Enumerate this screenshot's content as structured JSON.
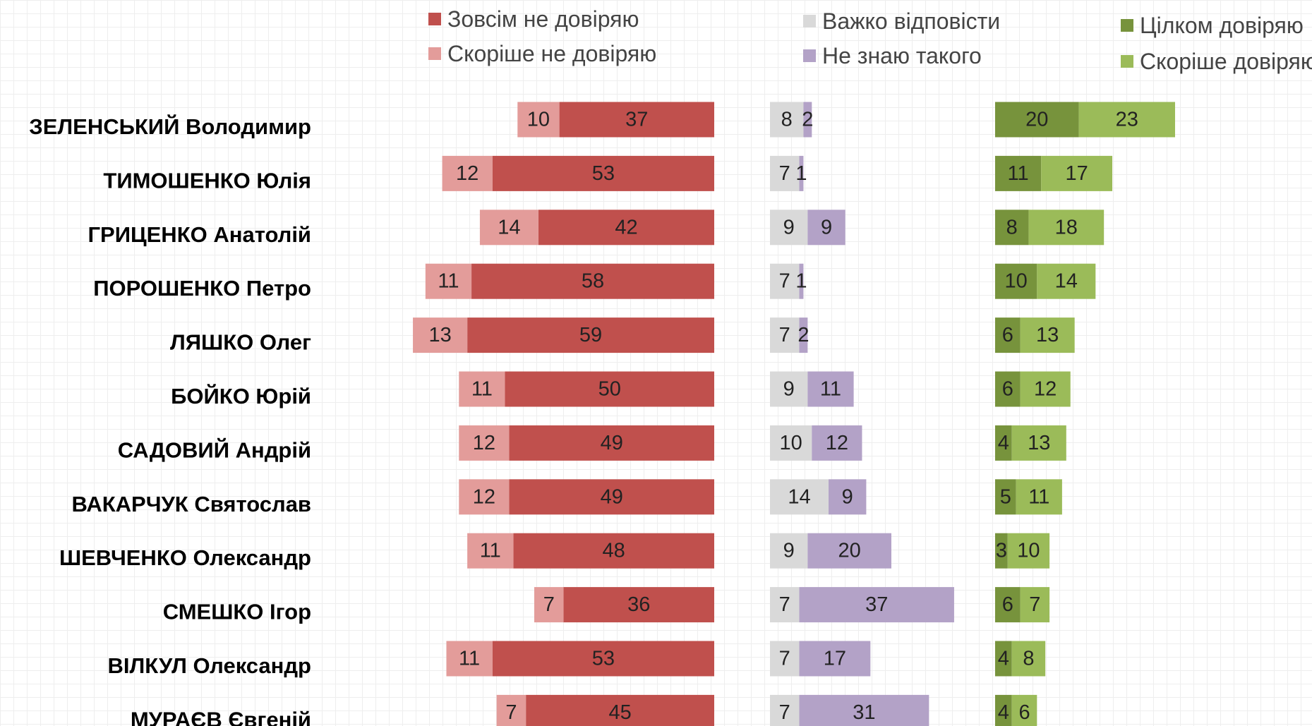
{
  "chart_data": {
    "type": "bar",
    "categories": [
      "ЗЕЛЕНСЬКИЙ Володимир",
      "ТИМОШЕНКО Юлія",
      "ГРИЦЕНКО Анатолій",
      "ПОРОШЕНКО Петро",
      "ЛЯШКО Олег",
      "БОЙКО Юрій",
      "САДОВИЙ Андрій",
      "ВАКАРЧУК Святослав",
      "ШЕВЧЕНКО Олександр",
      "СМЕШКО Ігор",
      "ВІЛКУЛ Олександр",
      "МУРАЄВ Євгеній"
    ],
    "series": [
      {
        "name": "Зовсім не довіряю",
        "color": "#c0504d",
        "values": [
          37,
          53,
          42,
          58,
          59,
          50,
          49,
          49,
          48,
          36,
          53,
          45
        ]
      },
      {
        "name": "Скоріше не довіряю",
        "color": "#e39c9a",
        "values": [
          10,
          12,
          14,
          11,
          13,
          11,
          12,
          12,
          11,
          7,
          11,
          7
        ]
      },
      {
        "name": "Важко відповісти",
        "color": "#d9d9d9",
        "values": [
          8,
          7,
          9,
          7,
          7,
          9,
          10,
          14,
          9,
          7,
          7,
          7
        ]
      },
      {
        "name": "Не знаю такого",
        "color": "#b3a2c7",
        "values": [
          2,
          1,
          9,
          1,
          2,
          11,
          12,
          9,
          20,
          37,
          17,
          31
        ]
      },
      {
        "name": "Цілком довіряю",
        "color": "#77933c",
        "values": [
          20,
          11,
          8,
          10,
          6,
          6,
          4,
          5,
          3,
          6,
          4,
          4
        ]
      },
      {
        "name": "Скоріше довіряю",
        "color": "#9bbb59",
        "values": [
          23,
          17,
          18,
          14,
          13,
          12,
          13,
          11,
          10,
          7,
          8,
          6
        ]
      }
    ]
  }
}
